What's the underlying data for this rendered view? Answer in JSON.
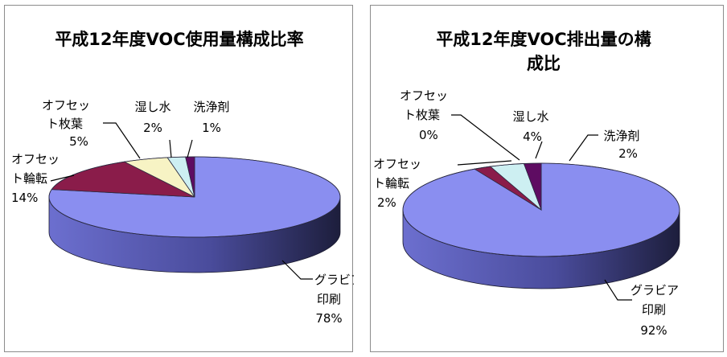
{
  "colors": {
    "gravure": "#8a8ef0",
    "offset_rotary": "#8a1c4a",
    "offset_sheet": "#f7f3c4",
    "dampening": "#cdeff2",
    "cleaner": "#5e0c62"
  },
  "chart_data": [
    {
      "type": "pie",
      "title": "平成12年度VOC使用量構成比率",
      "slices": [
        {
          "label": [
            "グラビア",
            "印刷"
          ],
          "value": 78,
          "value_label": "78%",
          "color_key": "gravure"
        },
        {
          "label": [
            "オフセッ",
            "ト輪転"
          ],
          "value": 14,
          "value_label": "14%",
          "color_key": "offset_rotary"
        },
        {
          "label": [
            "オフセッ",
            "ト枚葉"
          ],
          "value": 5,
          "value_label": "5%",
          "color_key": "offset_sheet"
        },
        {
          "label": [
            "湿し水"
          ],
          "value": 2,
          "value_label": "2%",
          "color_key": "dampening"
        },
        {
          "label": [
            "洗浄剤"
          ],
          "value": 1,
          "value_label": "1%",
          "color_key": "cleaner"
        }
      ]
    },
    {
      "type": "pie",
      "title": "平成12年度VOC排出量の構成比",
      "title_lines": [
        "平成12年度VOC排出量の構",
        "成比"
      ],
      "slices": [
        {
          "label": [
            "グラビア",
            "印刷"
          ],
          "value": 92,
          "value_label": "92%",
          "color_key": "gravure"
        },
        {
          "label": [
            "オフセッ",
            "ト輪転"
          ],
          "value": 2,
          "value_label": "2%",
          "color_key": "offset_rotary"
        },
        {
          "label": [
            "オフセッ",
            "ト枚葉"
          ],
          "value": 0,
          "value_label": "0%",
          "color_key": "offset_sheet"
        },
        {
          "label": [
            "湿し水"
          ],
          "value": 4,
          "value_label": "4%",
          "color_key": "dampening"
        },
        {
          "label": [
            "洗浄剤"
          ],
          "value": 2,
          "value_label": "2%",
          "color_key": "cleaner"
        }
      ]
    }
  ]
}
